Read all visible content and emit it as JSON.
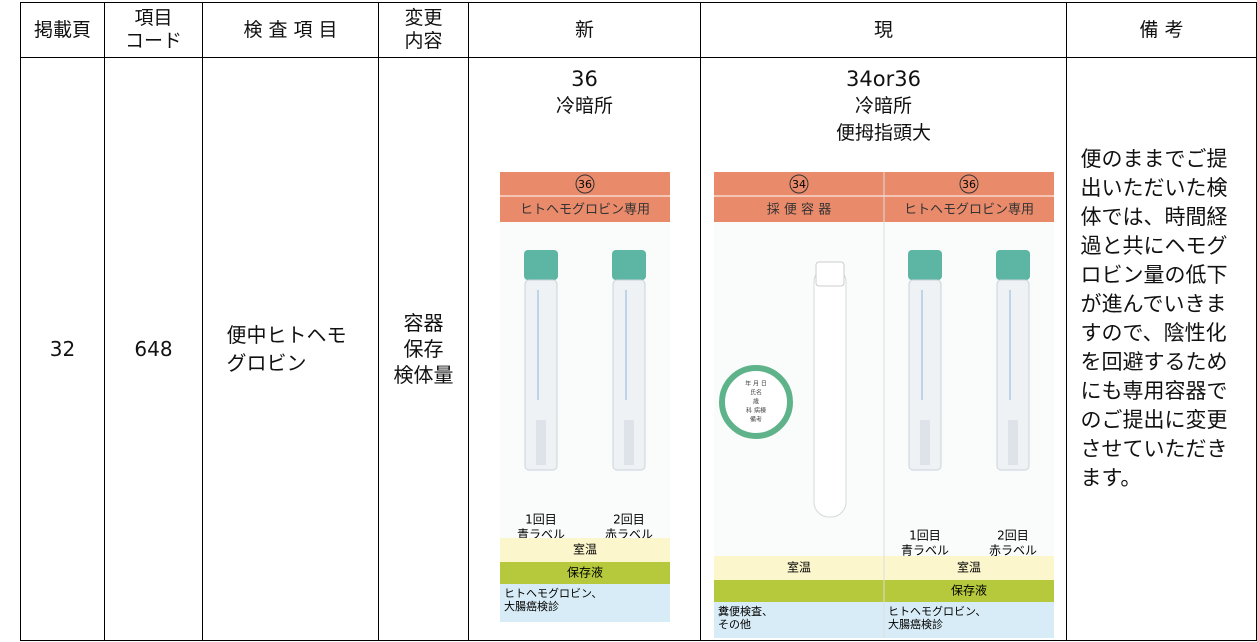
{
  "table": {
    "headers": [
      "掲載頁",
      [
        "項目",
        "コード"
      ],
      "検 査 項 目",
      [
        "変更",
        "内容"
      ],
      "新",
      "現",
      "備 考"
    ],
    "row": {
      "page": "32",
      "code": "648",
      "item": "便中ヒトヘモグロビン",
      "change": [
        "容器",
        "保存",
        "検体量"
      ],
      "new": {
        "labels": [
          "36",
          "冷暗所"
        ],
        "panels": [
          {
            "number": "36",
            "title": "ヒトヘモグロビン専用",
            "tubes": [
              [
                "1回目",
                "青ラベル"
              ],
              [
                "2回目",
                "赤ラベル"
              ]
            ],
            "storage": "室温",
            "solution": "保存液",
            "use": [
              "ヒトヘモグロビン、",
              "大腸癌検診"
            ]
          }
        ]
      },
      "current": {
        "labels": [
          "34or36",
          "冷暗所",
          "便拇指頭大"
        ],
        "panels": [
          {
            "number": "34",
            "title": "採 便 容 器",
            "label_text": [
              "年 月 日",
              "氏名",
              "歳",
              "科 病棟",
              "備考"
            ],
            "storage": "室温",
            "use": [
              "糞便検査、",
              "その他"
            ]
          },
          {
            "number": "36",
            "title": "ヒトヘモグロビン専用",
            "tubes": [
              [
                "1回目",
                "青ラベル"
              ],
              [
                "2回目",
                "赤ラベル"
              ]
            ],
            "storage": "室温",
            "solution": "保存液",
            "use": [
              "ヒトヘモグロビン、",
              "大腸癌検診"
            ]
          }
        ]
      },
      "remarks": "便のままでご提出いただいた検体では、時間経過と共にヘモグロビン量の低下が進んでいきますので、陰性化を回避するためにも専用容器でのご提出に変更させていただきます。"
    }
  }
}
